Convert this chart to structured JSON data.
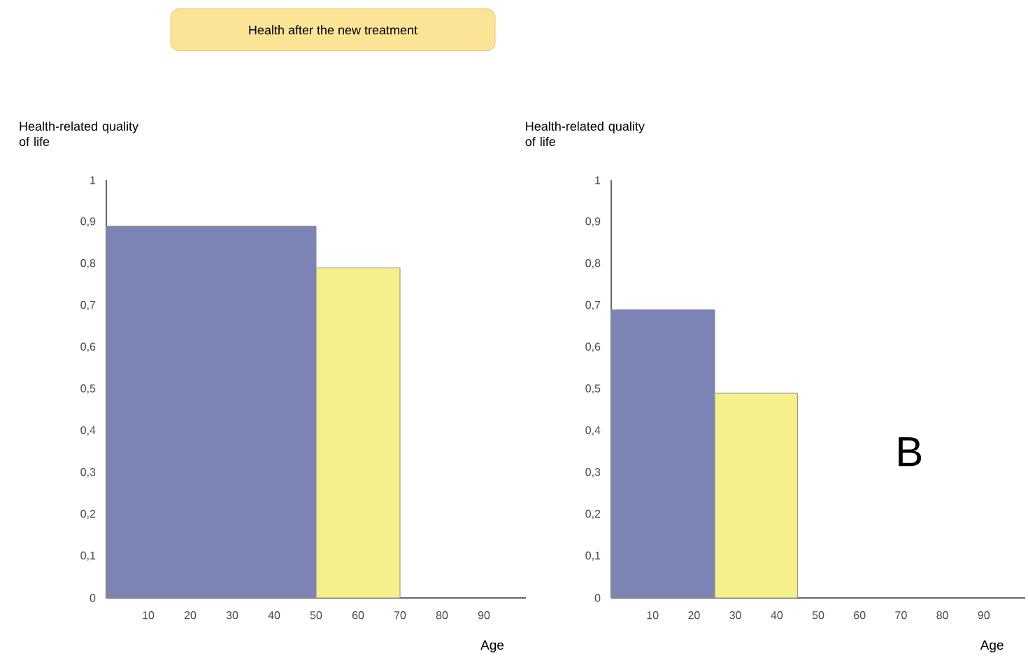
{
  "chart_data": [
    {
      "type": "histogram",
      "title": "Health after the new treatment",
      "ylabel": "Health-related quality of life",
      "xlabel": "Age",
      "bins": [
        0,
        50,
        70
      ],
      "values": [
        0.89,
        0.79
      ],
      "colors": [
        "#7b84b4",
        "#f5ef8c"
      ],
      "xlim": [
        0,
        100
      ],
      "xticks": [
        10,
        20,
        30,
        40,
        50,
        60,
        70,
        80,
        90
      ],
      "ylim": [
        0,
        1
      ],
      "yticks": [
        0,
        {
          "value": 0.1,
          "label": "0,1"
        },
        {
          "value": 0.2,
          "label": "0,2"
        },
        {
          "value": 0.3,
          "label": "0,3"
        },
        {
          "value": 0.4,
          "label": "0,4"
        },
        {
          "value": 0.5,
          "label": "0,5"
        },
        {
          "value": 0.6,
          "label": "0,6"
        },
        {
          "value": 0.7,
          "label": "0,7"
        },
        {
          "value": 0.8,
          "label": "0,8"
        },
        {
          "value": 0.9,
          "label": "0,9"
        },
        1
      ]
    },
    {
      "type": "histogram",
      "ylabel": "Health-related quality of life",
      "xlabel": "Age",
      "annotations": [
        "B"
      ],
      "bins": [
        0,
        25,
        45
      ],
      "values": [
        0.69,
        0.49
      ],
      "colors": [
        "#7b84b4",
        "#f5ef8c"
      ],
      "xlim": [
        0,
        100
      ],
      "xticks": [
        10,
        20,
        30,
        40,
        50,
        60,
        70,
        80,
        90
      ],
      "ylim": [
        0,
        1
      ],
      "yticks": [
        0,
        {
          "value": 0.1,
          "label": "0,1"
        },
        {
          "value": 0.2,
          "label": "0,2"
        },
        {
          "value": 0.3,
          "label": "0,3"
        },
        {
          "value": 0.4,
          "label": "0,4"
        },
        {
          "value": 0.5,
          "label": "0,5"
        },
        {
          "value": 0.6,
          "label": "0,6"
        },
        {
          "value": 0.7,
          "label": "0,7"
        },
        {
          "value": 0.8,
          "label": "0,8"
        },
        {
          "value": 0.9,
          "label": "0,9"
        },
        1
      ]
    }
  ]
}
